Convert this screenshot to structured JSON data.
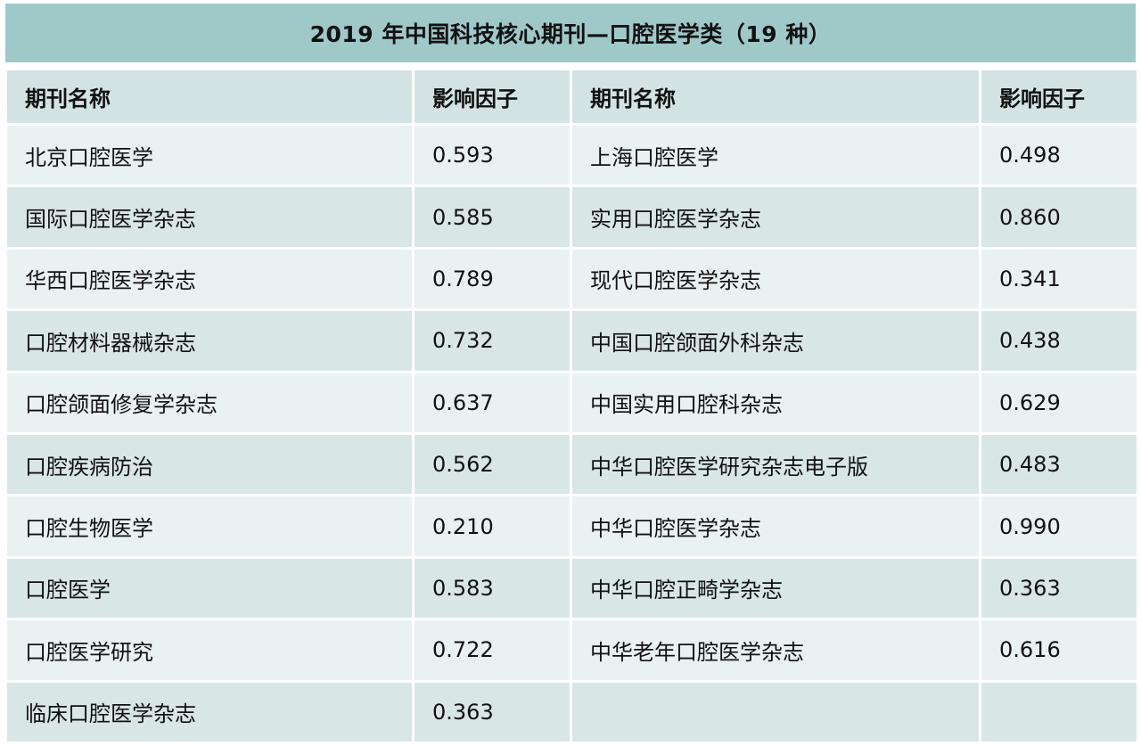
{
  "title": "2019 年中国科技核心期刊—口腔医学类（19 种）",
  "headers": {
    "name_left": "期刊名称",
    "if_left": "影响因子",
    "name_right": "期刊名称",
    "if_right": "影响因子"
  },
  "rows": [
    {
      "left_name": "北京口腔医学",
      "left_if": "0.593",
      "right_name": "上海口腔医学",
      "right_if": "0.498"
    },
    {
      "left_name": "国际口腔医学杂志",
      "left_if": "0.585",
      "right_name": "实用口腔医学杂志",
      "right_if": "0.860"
    },
    {
      "left_name": "华西口腔医学杂志",
      "left_if": "0.789",
      "right_name": "现代口腔医学杂志",
      "right_if": "0.341"
    },
    {
      "left_name": "口腔材料器械杂志",
      "left_if": "0.732",
      "right_name": "中国口腔颌面外科杂志",
      "right_if": "0.438"
    },
    {
      "left_name": "口腔颌面修复学杂志",
      "left_if": "0.637",
      "right_name": "中国实用口腔科杂志",
      "right_if": "0.629"
    },
    {
      "left_name": "口腔疾病防治",
      "left_if": "0.562",
      "right_name": "中华口腔医学研究杂志电子版",
      "right_if": "0.483"
    },
    {
      "left_name": "口腔生物医学",
      "left_if": "0.210",
      "right_name": "中华口腔医学杂志",
      "right_if": "0.990"
    },
    {
      "left_name": "口腔医学",
      "left_if": "0.583",
      "right_name": "中华口腔正畸学杂志",
      "right_if": "0.363"
    },
    {
      "left_name": "口腔医学研究",
      "left_if": "0.722",
      "right_name": "中华老年口腔医学杂志",
      "right_if": "0.616"
    },
    {
      "left_name": "临床口腔医学杂志",
      "left_if": "0.363",
      "right_name": "",
      "right_if": ""
    }
  ]
}
